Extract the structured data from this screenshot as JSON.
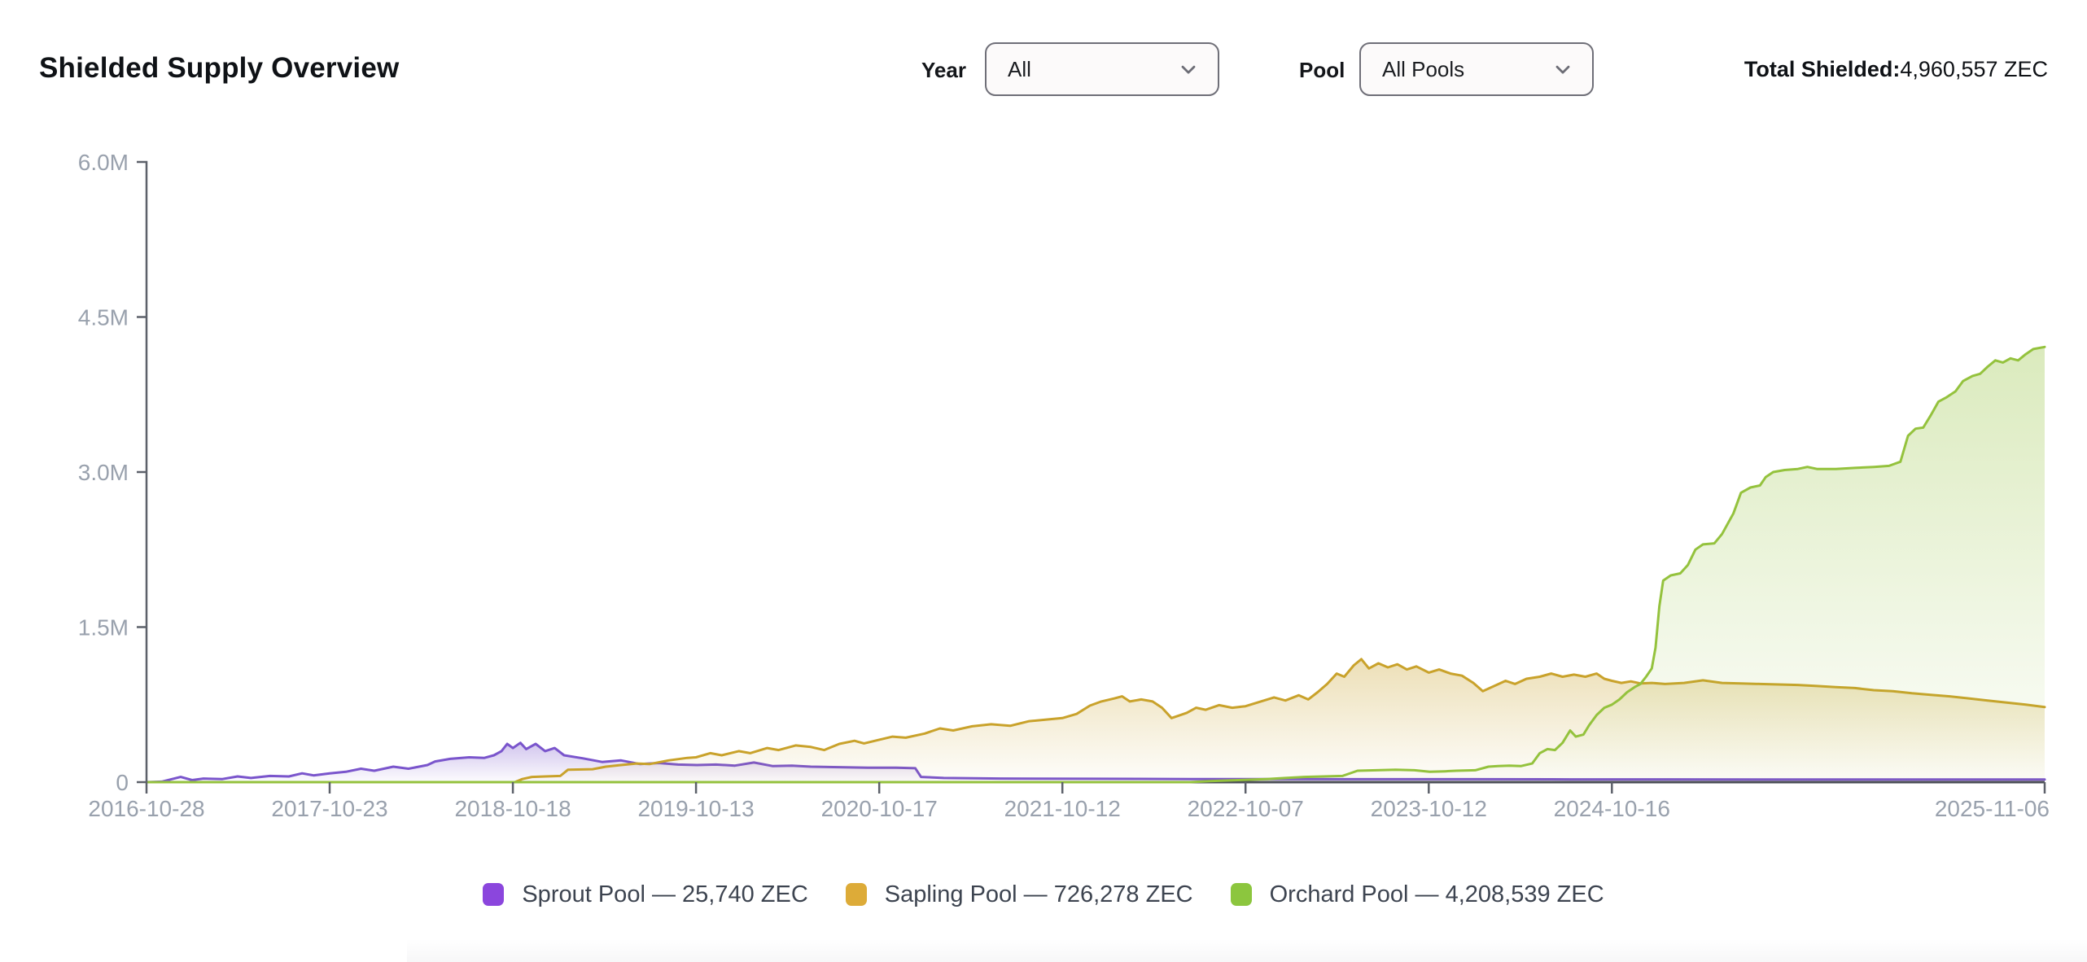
{
  "header": {
    "title": "Shielded Supply Overview",
    "year_label": "Year",
    "year_value": "All",
    "pool_label": "Pool",
    "pool_value": "All Pools",
    "total_label": "Total Shielded:",
    "total_value": "4,960,557 ZEC"
  },
  "legend": [
    {
      "label": "Sprout Pool — 25,740 ZEC",
      "swatch_color": "#8b46dd"
    },
    {
      "label": "Sapling Pool — 726,278 ZEC",
      "swatch_color": "#ddab38"
    },
    {
      "label": "Orchard Pool — 4,208,539 ZEC",
      "swatch_color": "#8cc63e"
    }
  ],
  "chart_data": {
    "type": "area",
    "title": "Shielded Supply Overview",
    "unit": "ZEC",
    "grid": false,
    "legend_position": "bottom-center",
    "y_axis": {
      "range_millions": [
        0,
        6
      ],
      "ticks": [
        {
          "label": "0",
          "value": 0
        },
        {
          "label": "1.5M",
          "value": 1.5
        },
        {
          "label": "3.0M",
          "value": 3.0
        },
        {
          "label": "4.5M",
          "value": 4.5
        },
        {
          "label": "6.0M",
          "value": 6.0
        }
      ]
    },
    "x_axis": {
      "ticks": [
        {
          "label": "2016-10-28",
          "pos": 0.0
        },
        {
          "label": "2017-10-23",
          "pos": 0.0965
        },
        {
          "label": "2018-10-18",
          "pos": 0.193
        },
        {
          "label": "2019-10-13",
          "pos": 0.2895
        },
        {
          "label": "2020-10-17",
          "pos": 0.386
        },
        {
          "label": "2021-10-12",
          "pos": 0.4825
        },
        {
          "label": "2022-10-07",
          "pos": 0.579
        },
        {
          "label": "2023-10-12",
          "pos": 0.6755
        },
        {
          "label": "2024-10-16",
          "pos": 0.772
        },
        {
          "label": "2025-11-06",
          "pos": 1.0
        }
      ]
    },
    "series": [
      {
        "name": "Sprout Pool",
        "current_value": "25,740 ZEC",
        "line_color": "#7a55cc",
        "points_millions": [
          [
            0,
            0
          ],
          [
            0.008,
            0.005
          ],
          [
            0.018,
            0.05
          ],
          [
            0.024,
            0.02
          ],
          [
            0.03,
            0.035
          ],
          [
            0.04,
            0.03
          ],
          [
            0.048,
            0.055
          ],
          [
            0.055,
            0.04
          ],
          [
            0.065,
            0.06
          ],
          [
            0.075,
            0.055
          ],
          [
            0.082,
            0.085
          ],
          [
            0.088,
            0.065
          ],
          [
            0.0965,
            0.085
          ],
          [
            0.105,
            0.1
          ],
          [
            0.113,
            0.13
          ],
          [
            0.12,
            0.11
          ],
          [
            0.13,
            0.15
          ],
          [
            0.138,
            0.13
          ],
          [
            0.148,
            0.165
          ],
          [
            0.152,
            0.2
          ],
          [
            0.16,
            0.225
          ],
          [
            0.17,
            0.24
          ],
          [
            0.178,
            0.235
          ],
          [
            0.183,
            0.26
          ],
          [
            0.187,
            0.3
          ],
          [
            0.19,
            0.37
          ],
          [
            0.193,
            0.33
          ],
          [
            0.197,
            0.38
          ],
          [
            0.2,
            0.32
          ],
          [
            0.205,
            0.37
          ],
          [
            0.21,
            0.3
          ],
          [
            0.215,
            0.33
          ],
          [
            0.22,
            0.26
          ],
          [
            0.23,
            0.23
          ],
          [
            0.24,
            0.195
          ],
          [
            0.25,
            0.21
          ],
          [
            0.26,
            0.175
          ],
          [
            0.27,
            0.185
          ],
          [
            0.28,
            0.17
          ],
          [
            0.29,
            0.165
          ],
          [
            0.3,
            0.17
          ],
          [
            0.31,
            0.16
          ],
          [
            0.32,
            0.19
          ],
          [
            0.33,
            0.155
          ],
          [
            0.34,
            0.16
          ],
          [
            0.35,
            0.15
          ],
          [
            0.365,
            0.145
          ],
          [
            0.38,
            0.14
          ],
          [
            0.395,
            0.14
          ],
          [
            0.405,
            0.135
          ],
          [
            0.408,
            0.05
          ],
          [
            0.42,
            0.04
          ],
          [
            0.45,
            0.035
          ],
          [
            0.5,
            0.032
          ],
          [
            0.55,
            0.03
          ],
          [
            0.6,
            0.029
          ],
          [
            0.65,
            0.028
          ],
          [
            0.7,
            0.028
          ],
          [
            0.75,
            0.027
          ],
          [
            0.8,
            0.027
          ],
          [
            0.85,
            0.026
          ],
          [
            0.9,
            0.026
          ],
          [
            0.95,
            0.026
          ],
          [
            1,
            0.026
          ]
        ]
      },
      {
        "name": "Sapling Pool",
        "current_value": "726,278 ZEC",
        "line_color": "#c9a22b",
        "points_millions": [
          [
            0,
            0
          ],
          [
            0.194,
            0
          ],
          [
            0.198,
            0.03
          ],
          [
            0.203,
            0.05
          ],
          [
            0.21,
            0.055
          ],
          [
            0.218,
            0.06
          ],
          [
            0.222,
            0.12
          ],
          [
            0.235,
            0.125
          ],
          [
            0.242,
            0.15
          ],
          [
            0.25,
            0.165
          ],
          [
            0.258,
            0.18
          ],
          [
            0.265,
            0.175
          ],
          [
            0.275,
            0.21
          ],
          [
            0.285,
            0.235
          ],
          [
            0.2895,
            0.24
          ],
          [
            0.297,
            0.28
          ],
          [
            0.303,
            0.26
          ],
          [
            0.312,
            0.3
          ],
          [
            0.318,
            0.28
          ],
          [
            0.327,
            0.33
          ],
          [
            0.333,
            0.31
          ],
          [
            0.342,
            0.355
          ],
          [
            0.35,
            0.34
          ],
          [
            0.357,
            0.31
          ],
          [
            0.365,
            0.37
          ],
          [
            0.373,
            0.4
          ],
          [
            0.378,
            0.375
          ],
          [
            0.386,
            0.41
          ],
          [
            0.393,
            0.44
          ],
          [
            0.4,
            0.43
          ],
          [
            0.41,
            0.47
          ],
          [
            0.418,
            0.52
          ],
          [
            0.425,
            0.5
          ],
          [
            0.435,
            0.54
          ],
          [
            0.445,
            0.56
          ],
          [
            0.455,
            0.545
          ],
          [
            0.465,
            0.59
          ],
          [
            0.4825,
            0.62
          ],
          [
            0.49,
            0.66
          ],
          [
            0.497,
            0.74
          ],
          [
            0.503,
            0.78
          ],
          [
            0.51,
            0.81
          ],
          [
            0.514,
            0.83
          ],
          [
            0.518,
            0.78
          ],
          [
            0.524,
            0.8
          ],
          [
            0.53,
            0.78
          ],
          [
            0.535,
            0.72
          ],
          [
            0.54,
            0.62
          ],
          [
            0.548,
            0.67
          ],
          [
            0.553,
            0.72
          ],
          [
            0.558,
            0.7
          ],
          [
            0.565,
            0.745
          ],
          [
            0.572,
            0.72
          ],
          [
            0.579,
            0.735
          ],
          [
            0.587,
            0.78
          ],
          [
            0.594,
            0.82
          ],
          [
            0.6,
            0.79
          ],
          [
            0.607,
            0.84
          ],
          [
            0.612,
            0.8
          ],
          [
            0.617,
            0.87
          ],
          [
            0.622,
            0.95
          ],
          [
            0.627,
            1.05
          ],
          [
            0.631,
            1.02
          ],
          [
            0.636,
            1.13
          ],
          [
            0.64,
            1.19
          ],
          [
            0.644,
            1.1
          ],
          [
            0.649,
            1.15
          ],
          [
            0.654,
            1.11
          ],
          [
            0.659,
            1.14
          ],
          [
            0.664,
            1.09
          ],
          [
            0.669,
            1.12
          ],
          [
            0.6755,
            1.06
          ],
          [
            0.681,
            1.09
          ],
          [
            0.687,
            1.05
          ],
          [
            0.693,
            1.03
          ],
          [
            0.699,
            0.96
          ],
          [
            0.704,
            0.88
          ],
          [
            0.71,
            0.93
          ],
          [
            0.716,
            0.98
          ],
          [
            0.721,
            0.95
          ],
          [
            0.727,
            1.0
          ],
          [
            0.734,
            1.02
          ],
          [
            0.74,
            1.05
          ],
          [
            0.746,
            1.02
          ],
          [
            0.752,
            1.04
          ],
          [
            0.758,
            1.02
          ],
          [
            0.764,
            1.05
          ],
          [
            0.768,
            1.0
          ],
          [
            0.772,
            0.98
          ],
          [
            0.777,
            0.96
          ],
          [
            0.782,
            0.975
          ],
          [
            0.787,
            0.955
          ],
          [
            0.793,
            0.96
          ],
          [
            0.8,
            0.95
          ],
          [
            0.81,
            0.96
          ],
          [
            0.82,
            0.985
          ],
          [
            0.83,
            0.96
          ],
          [
            0.84,
            0.955
          ],
          [
            0.85,
            0.95
          ],
          [
            0.86,
            0.945
          ],
          [
            0.87,
            0.94
          ],
          [
            0.88,
            0.93
          ],
          [
            0.89,
            0.92
          ],
          [
            0.9,
            0.91
          ],
          [
            0.91,
            0.89
          ],
          [
            0.92,
            0.88
          ],
          [
            0.93,
            0.86
          ],
          [
            0.94,
            0.845
          ],
          [
            0.95,
            0.83
          ],
          [
            0.96,
            0.81
          ],
          [
            0.97,
            0.79
          ],
          [
            0.98,
            0.77
          ],
          [
            0.99,
            0.75
          ],
          [
            1,
            0.726
          ]
        ]
      },
      {
        "name": "Orchard Pool",
        "current_value": "4,208,539 ZEC",
        "line_color": "#94c23d",
        "points_millions": [
          [
            0,
            0
          ],
          [
            0.55,
            0
          ],
          [
            0.56,
            0.01
          ],
          [
            0.575,
            0.02
          ],
          [
            0.59,
            0.03
          ],
          [
            0.6,
            0.04
          ],
          [
            0.61,
            0.05
          ],
          [
            0.62,
            0.055
          ],
          [
            0.63,
            0.06
          ],
          [
            0.638,
            0.11
          ],
          [
            0.648,
            0.115
          ],
          [
            0.658,
            0.12
          ],
          [
            0.668,
            0.115
          ],
          [
            0.676,
            0.1
          ],
          [
            0.684,
            0.105
          ],
          [
            0.69,
            0.11
          ],
          [
            0.7,
            0.115
          ],
          [
            0.707,
            0.15
          ],
          [
            0.712,
            0.155
          ],
          [
            0.718,
            0.16
          ],
          [
            0.724,
            0.155
          ],
          [
            0.73,
            0.18
          ],
          [
            0.734,
            0.28
          ],
          [
            0.738,
            0.32
          ],
          [
            0.742,
            0.31
          ],
          [
            0.746,
            0.38
          ],
          [
            0.75,
            0.5
          ],
          [
            0.753,
            0.44
          ],
          [
            0.757,
            0.46
          ],
          [
            0.76,
            0.55
          ],
          [
            0.764,
            0.65
          ],
          [
            0.768,
            0.72
          ],
          [
            0.772,
            0.75
          ],
          [
            0.776,
            0.8
          ],
          [
            0.78,
            0.87
          ],
          [
            0.784,
            0.92
          ],
          [
            0.787,
            0.95
          ],
          [
            0.79,
            1.02
          ],
          [
            0.793,
            1.1
          ],
          [
            0.795,
            1.3
          ],
          [
            0.797,
            1.7
          ],
          [
            0.799,
            1.95
          ],
          [
            0.803,
            2.0
          ],
          [
            0.808,
            2.02
          ],
          [
            0.812,
            2.1
          ],
          [
            0.816,
            2.25
          ],
          [
            0.82,
            2.3
          ],
          [
            0.826,
            2.31
          ],
          [
            0.83,
            2.4
          ],
          [
            0.836,
            2.6
          ],
          [
            0.84,
            2.8
          ],
          [
            0.845,
            2.85
          ],
          [
            0.85,
            2.87
          ],
          [
            0.853,
            2.95
          ],
          [
            0.857,
            3.0
          ],
          [
            0.863,
            3.02
          ],
          [
            0.87,
            3.03
          ],
          [
            0.875,
            3.05
          ],
          [
            0.88,
            3.03
          ],
          [
            0.89,
            3.03
          ],
          [
            0.9,
            3.04
          ],
          [
            0.91,
            3.05
          ],
          [
            0.918,
            3.06
          ],
          [
            0.924,
            3.1
          ],
          [
            0.928,
            3.35
          ],
          [
            0.932,
            3.42
          ],
          [
            0.936,
            3.43
          ],
          [
            0.94,
            3.55
          ],
          [
            0.944,
            3.68
          ],
          [
            0.948,
            3.72
          ],
          [
            0.953,
            3.78
          ],
          [
            0.957,
            3.88
          ],
          [
            0.962,
            3.93
          ],
          [
            0.966,
            3.95
          ],
          [
            0.97,
            4.02
          ],
          [
            0.974,
            4.08
          ],
          [
            0.978,
            4.06
          ],
          [
            0.982,
            4.1
          ],
          [
            0.986,
            4.08
          ],
          [
            0.99,
            4.14
          ],
          [
            0.994,
            4.19
          ],
          [
            1,
            4.21
          ]
        ]
      }
    ]
  }
}
